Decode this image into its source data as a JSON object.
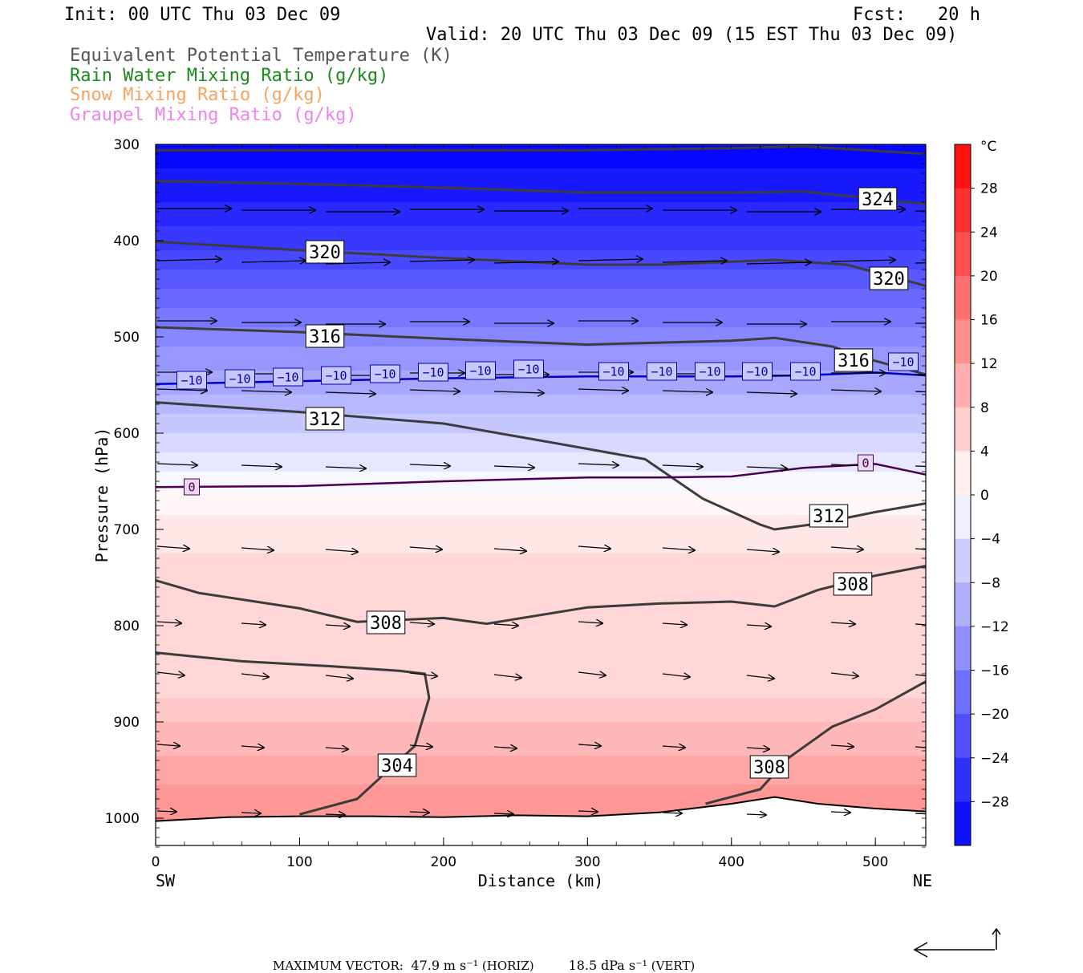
{
  "header": {
    "init": "Init: 00 UTC Thu 03 Dec 09",
    "fcst": "Fcst:   20 h",
    "valid": "Valid: 20 UTC Thu 03 Dec 09 (15 EST Thu 03 Dec 09)"
  },
  "legend": [
    {
      "label": "Equivalent Potential Temperature (K)",
      "color": "#555555"
    },
    {
      "label": "Rain Water Mixing Ratio (g/kg)",
      "color": "#1a8a1a"
    },
    {
      "label": "Snow Mixing Ratio (g/kg)",
      "color": "#f4a460"
    },
    {
      "label": "Graupel Mixing Ratio (g/kg)",
      "color": "#ee82ee"
    }
  ],
  "chart_data": {
    "type": "heatmap",
    "xlabel": "Distance (km)",
    "ylabel": "Pressure (hPa)",
    "x_range": [
      0,
      535
    ],
    "y_range": [
      1030,
      300
    ],
    "y_scale": "linear, inverted (pressure decreases upward)",
    "x_ticks": [
      0,
      100,
      200,
      300,
      400,
      500
    ],
    "y_ticks": [
      300,
      400,
      500,
      600,
      700,
      800,
      900,
      1000
    ],
    "x_end_labels": {
      "left": "SW",
      "right": "NE"
    },
    "fill_field": "temperature (°C)",
    "colorbar": {
      "unit": "°C",
      "tick_labels": [
        "28",
        "24",
        "20",
        "16",
        "12",
        "8",
        "4",
        "0",
        "−4",
        "−8",
        "−12",
        "−16",
        "−20",
        "−24",
        "−28"
      ],
      "tick_values": [
        28,
        24,
        20,
        16,
        12,
        8,
        4,
        0,
        -4,
        -8,
        -12,
        -16,
        -20,
        -24,
        -28
      ],
      "range": [
        -32,
        32
      ],
      "warm_color": "#ff0000",
      "cold_color": "#0000ff"
    },
    "temperature_profile": {
      "pressure": [
        300,
        350,
        400,
        450,
        500,
        550,
        600,
        650,
        700,
        750,
        800,
        850,
        900,
        950,
        1000
      ],
      "temp_c": [
        -31,
        -29,
        -25,
        -20,
        -15,
        -11,
        -6,
        -1,
        3,
        5,
        6,
        4,
        8,
        11,
        14
      ]
    },
    "isotherms": [
      {
        "label": "−10",
        "value": -10,
        "color": "#0000cc",
        "points": [
          [
            0,
            549
          ],
          [
            100,
            546
          ],
          [
            200,
            543
          ],
          [
            300,
            541
          ],
          [
            400,
            541
          ],
          [
            450,
            540
          ],
          [
            500,
            537
          ],
          [
            535,
            540
          ]
        ]
      },
      {
        "label": "0",
        "value": 0,
        "color": "#4b0052",
        "points": [
          [
            0,
            656
          ],
          [
            100,
            655
          ],
          [
            200,
            650
          ],
          [
            300,
            646
          ],
          [
            350,
            646
          ],
          [
            400,
            645
          ],
          [
            450,
            636
          ],
          [
            500,
            632
          ],
          [
            535,
            643
          ]
        ]
      }
    ],
    "theta_e_contours": [
      {
        "label": "324",
        "points": [
          [
            0,
            306
          ],
          [
            100,
            306
          ],
          [
            200,
            306
          ],
          [
            300,
            306
          ],
          [
            400,
            304
          ],
          [
            450,
            302
          ],
          [
            535,
            310
          ]
        ]
      },
      {
        "label": "324",
        "points": [
          [
            0,
            338
          ],
          [
            100,
            341
          ],
          [
            200,
            345
          ],
          [
            300,
            350
          ],
          [
            400,
            350
          ],
          [
            450,
            349
          ],
          [
            535,
            362
          ]
        ]
      },
      {
        "label": "320",
        "points": [
          [
            0,
            401
          ],
          [
            100,
            410
          ],
          [
            200,
            418
          ],
          [
            300,
            425
          ],
          [
            350,
            425
          ],
          [
            430,
            420
          ],
          [
            480,
            425
          ],
          [
            535,
            447
          ]
        ]
      },
      {
        "label": "316",
        "points": [
          [
            0,
            490
          ],
          [
            100,
            495
          ],
          [
            200,
            502
          ],
          [
            300,
            508
          ],
          [
            400,
            504
          ],
          [
            430,
            501
          ],
          [
            470,
            510
          ],
          [
            500,
            525
          ],
          [
            535,
            539
          ]
        ]
      },
      {
        "label": "312",
        "points": [
          [
            0,
            568
          ],
          [
            100,
            578
          ],
          [
            200,
            590
          ],
          [
            280,
            611
          ],
          [
            340,
            627
          ],
          [
            380,
            668
          ],
          [
            420,
            695
          ],
          [
            430,
            700
          ],
          [
            460,
            694
          ],
          [
            500,
            682
          ],
          [
            535,
            673
          ]
        ]
      },
      {
        "label": "308",
        "points": [
          [
            0,
            753
          ],
          [
            30,
            766
          ],
          [
            100,
            782
          ],
          [
            140,
            796
          ],
          [
            200,
            792
          ],
          [
            230,
            798
          ],
          [
            300,
            781
          ],
          [
            350,
            777
          ],
          [
            400,
            775
          ],
          [
            430,
            780
          ],
          [
            460,
            763
          ],
          [
            500,
            748
          ],
          [
            535,
            738
          ]
        ]
      },
      {
        "label": "304",
        "points": [
          [
            0,
            828
          ],
          [
            60,
            837
          ],
          [
            120,
            842
          ],
          [
            170,
            847
          ],
          [
            187,
            850
          ],
          [
            190,
            875
          ],
          [
            180,
            925
          ],
          [
            140,
            980
          ],
          [
            100,
            996
          ]
        ]
      },
      {
        "label": "308",
        "points": [
          [
            382,
            985
          ],
          [
            420,
            970
          ],
          [
            440,
            937
          ],
          [
            470,
            905
          ],
          [
            500,
            887
          ],
          [
            535,
            858
          ]
        ]
      }
    ],
    "terrain": {
      "points": [
        [
          0,
          1003
        ],
        [
          50,
          999
        ],
        [
          100,
          998
        ],
        [
          150,
          998
        ],
        [
          200,
          999
        ],
        [
          250,
          997
        ],
        [
          300,
          998
        ],
        [
          350,
          994
        ],
        [
          400,
          985
        ],
        [
          430,
          978
        ],
        [
          460,
          985
        ],
        [
          500,
          990
        ],
        [
          535,
          993
        ]
      ]
    },
    "wind_vectors_note": "horizontal wind arrows at gridded locations, mostly pointing east (SW to NE)",
    "max_vector": {
      "label": "MAXIMUM VECTOR:",
      "horiz_value": "47.9",
      "horiz_unit": "m s⁻¹",
      "horiz_tag": "(HORIZ)",
      "vert_value": "18.5",
      "vert_unit": "dPa s⁻¹",
      "vert_tag": "(VERT)"
    }
  }
}
